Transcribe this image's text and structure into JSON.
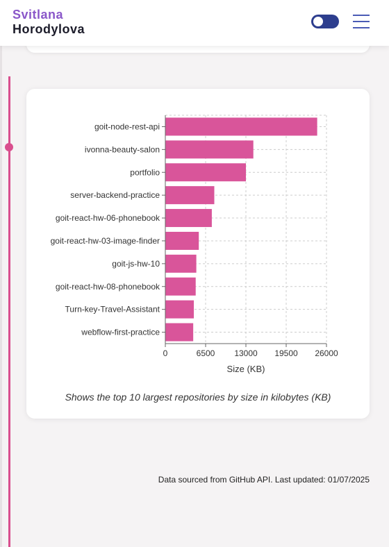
{
  "header": {
    "first_name": "Svitlana",
    "last_name": "Horodylova"
  },
  "colors": {
    "accent": "#d94f8e",
    "brand_purple": "#8a57c9",
    "toggle": "#2d3e8e"
  },
  "chart_data": {
    "type": "bar",
    "orientation": "horizontal",
    "categories": [
      "goit-node-rest-api",
      "ivonna-beauty-salon",
      "portfolio",
      "server-backend-practice",
      "goit-react-hw-06-phonebook",
      "goit-react-hw-03-image-finder",
      "goit-js-hw-10",
      "goit-react-hw-08-phonebook",
      "Turn-key-Travel-Assistant",
      "webflow-first-practice"
    ],
    "values": [
      24500,
      14200,
      13000,
      7900,
      7500,
      5400,
      5000,
      4900,
      4600,
      4500
    ],
    "xlabel": "Size (KB)",
    "ylabel": "",
    "xlim": [
      0,
      26000
    ],
    "xticks": [
      "0",
      "6500",
      "13000",
      "19500",
      "26000"
    ],
    "grid": true,
    "bar_color": "#d9559a",
    "caption": "Shows the top 10 largest repositories by size in kilobytes (KB)"
  },
  "footer": {
    "note": "Data sourced from GitHub API. Last updated: 01/07/2025"
  }
}
